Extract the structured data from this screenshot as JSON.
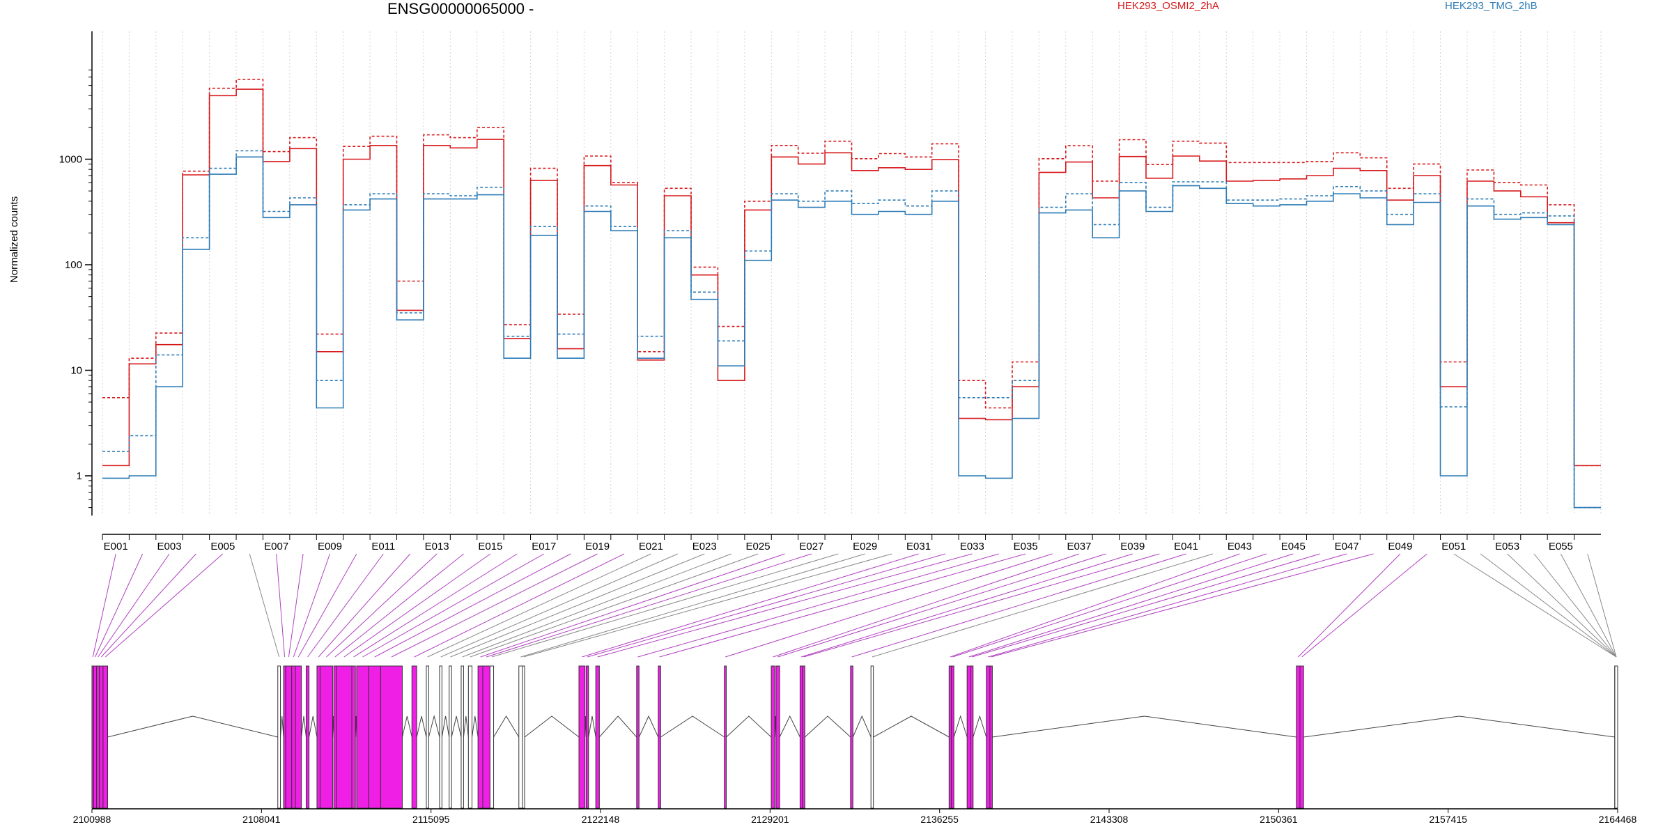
{
  "chart_data": {
    "type": "line",
    "title": "ENSG00000065000 -",
    "ylabel": "Normalized counts",
    "yscale": "log",
    "ylim": [
      0.5,
      7000
    ],
    "yticks": [
      1,
      10,
      100,
      1000
    ],
    "ytick_labels": [
      "1",
      "10",
      "100",
      "1000"
    ],
    "bins": [
      "E001",
      "E002",
      "E003",
      "E004",
      "E005",
      "E006",
      "E007",
      "E008",
      "E009",
      "E010",
      "E011",
      "E012",
      "E013",
      "E014",
      "E015",
      "E016",
      "E017",
      "E018",
      "E019",
      "E020",
      "E021",
      "E022",
      "E023",
      "E024",
      "E025",
      "E026",
      "E027",
      "E028",
      "E029",
      "E030",
      "E031",
      "E032",
      "E033",
      "E034",
      "E035",
      "E036",
      "E037",
      "E038",
      "E039",
      "E040",
      "E041",
      "E042",
      "E043",
      "E044",
      "E045",
      "E046",
      "E047",
      "E048",
      "E049",
      "E050",
      "E051",
      "E052",
      "E053",
      "E054",
      "E055",
      "E056"
    ],
    "x_tick_labels": [
      "E001",
      "E003",
      "E005",
      "E007",
      "E009",
      "E011",
      "E013",
      "E015",
      "E017",
      "E019",
      "E021",
      "E023",
      "E025",
      "E027",
      "E029",
      "E031",
      "E033",
      "E035",
      "E037",
      "E039",
      "E041",
      "E043",
      "E045",
      "E047",
      "E049",
      "E051",
      "E053",
      "E055"
    ],
    "series": [
      {
        "name": "HEK293_OSMI2_2hA",
        "color": "#d7191c",
        "style": "dashed",
        "values": [
          5.5,
          13,
          22.5,
          770,
          4700,
          5700,
          1180,
          1600,
          22,
          1320,
          1650,
          70,
          1700,
          1600,
          2000,
          27,
          820,
          34,
          1070,
          600,
          15,
          530,
          95,
          26,
          400,
          1350,
          1140,
          1480,
          1010,
          1130,
          1050,
          1400,
          8,
          4.4,
          12,
          1010,
          1340,
          620,
          1530,
          890,
          1480,
          1420,
          930,
          930,
          930,
          950,
          1150,
          1030,
          530,
          900,
          12,
          790,
          600,
          570,
          370,
          1.25
        ]
      },
      {
        "name": "HEK293_OSMI2_2hA",
        "color": "#d7191c",
        "style": "solid",
        "values": [
          1.25,
          11.5,
          17.5,
          710,
          4000,
          4600,
          950,
          1260,
          15,
          1000,
          1350,
          37,
          1350,
          1280,
          1540,
          20,
          630,
          16,
          870,
          570,
          12.5,
          450,
          80,
          8,
          330,
          1050,
          900,
          1150,
          780,
          830,
          800,
          990,
          3.5,
          3.4,
          7,
          750,
          940,
          430,
          1060,
          660,
          1070,
          960,
          620,
          630,
          650,
          700,
          820,
          780,
          410,
          700,
          7,
          620,
          500,
          440,
          250,
          1.25
        ]
      },
      {
        "name": "HEK293_TMG_2hB",
        "color": "#2c7bb6",
        "style": "dashed",
        "values": [
          1.7,
          2.4,
          14,
          180,
          820,
          1200,
          320,
          430,
          8,
          370,
          470,
          35,
          470,
          450,
          540,
          21,
          230,
          22,
          360,
          230,
          21,
          210,
          55,
          19,
          135,
          470,
          400,
          500,
          380,
          410,
          360,
          500,
          5.5,
          5.5,
          8,
          350,
          470,
          240,
          600,
          350,
          610,
          610,
          410,
          410,
          420,
          450,
          550,
          500,
          300,
          470,
          4.5,
          420,
          300,
          310,
          290,
          0.5
        ]
      },
      {
        "name": "HEK293_TMG_2hB",
        "color": "#2c7bb6",
        "style": "solid",
        "values": [
          0.95,
          1.0,
          7,
          140,
          720,
          1050,
          280,
          370,
          4.4,
          330,
          420,
          30,
          420,
          420,
          460,
          13,
          190,
          13,
          320,
          210,
          13,
          180,
          47,
          11,
          110,
          410,
          350,
          400,
          300,
          320,
          300,
          400,
          1.0,
          0.95,
          3.5,
          310,
          330,
          180,
          500,
          320,
          560,
          530,
          380,
          360,
          370,
          400,
          470,
          430,
          240,
          390,
          1.0,
          360,
          270,
          280,
          240,
          0.5
        ]
      }
    ],
    "genomic_ticks": [
      "2100988",
      "2108041",
      "2115095",
      "2122148",
      "2129201",
      "2136255",
      "2143308",
      "2150361",
      "2157415",
      "2164468"
    ],
    "exon_bins": [
      {
        "id": "E001",
        "start": 2100988,
        "end": 2101060,
        "highlight": true
      },
      {
        "id": "E002",
        "start": 2101060,
        "end": 2101180,
        "highlight": true
      },
      {
        "id": "E003",
        "start": 2101180,
        "end": 2101300,
        "highlight": true
      },
      {
        "id": "E004",
        "start": 2101300,
        "end": 2101450,
        "highlight": true
      },
      {
        "id": "E005",
        "start": 2101450,
        "end": 2101640,
        "highlight": true
      },
      {
        "id": "E006",
        "start": 2108720,
        "end": 2108830,
        "highlight": false
      },
      {
        "id": "E007",
        "start": 2108960,
        "end": 2109050,
        "highlight": true
      },
      {
        "id": "E008",
        "start": 2109050,
        "end": 2109300,
        "highlight": true
      },
      {
        "id": "E009",
        "start": 2109300,
        "end": 2109450,
        "highlight": true
      },
      {
        "id": "E010",
        "start": 2109450,
        "end": 2109700,
        "highlight": true
      },
      {
        "id": "E011",
        "start": 2109900,
        "end": 2110020,
        "highlight": true
      },
      {
        "id": "E012",
        "start": 2110350,
        "end": 2110480,
        "highlight": true
      },
      {
        "id": "E013",
        "start": 2110480,
        "end": 2111000,
        "highlight": true
      },
      {
        "id": "E014",
        "start": 2111050,
        "end": 2111150,
        "highlight": true
      },
      {
        "id": "E015",
        "start": 2111150,
        "end": 2111800,
        "highlight": true
      },
      {
        "id": "E016",
        "start": 2111800,
        "end": 2111950,
        "highlight": true
      },
      {
        "id": "E017",
        "start": 2112000,
        "end": 2112500,
        "highlight": true
      },
      {
        "id": "E018",
        "start": 2112500,
        "end": 2113000,
        "highlight": true
      },
      {
        "id": "E019",
        "start": 2113000,
        "end": 2113900,
        "highlight": true
      },
      {
        "id": "E020",
        "start": 2114300,
        "end": 2114500,
        "highlight": true
      },
      {
        "id": "E021",
        "start": 2114900,
        "end": 2115000,
        "highlight": false
      },
      {
        "id": "E022",
        "start": 2115450,
        "end": 2115550,
        "highlight": false
      },
      {
        "id": "E023",
        "start": 2115850,
        "end": 2115950,
        "highlight": false
      },
      {
        "id": "E024",
        "start": 2116350,
        "end": 2116450,
        "highlight": false
      },
      {
        "id": "E025",
        "start": 2116650,
        "end": 2116800,
        "highlight": false
      },
      {
        "id": "E026",
        "start": 2117050,
        "end": 2117250,
        "highlight": true
      },
      {
        "id": "E027",
        "start": 2117250,
        "end": 2117550,
        "highlight": true
      },
      {
        "id": "E028",
        "start": 2117550,
        "end": 2117700,
        "highlight": false
      },
      {
        "id": "E029",
        "start": 2118750,
        "end": 2118900,
        "highlight": false
      },
      {
        "id": "E030",
        "start": 2118900,
        "end": 2118990,
        "highlight": false
      },
      {
        "id": "E031",
        "start": 2121250,
        "end": 2121500,
        "highlight": true
      },
      {
        "id": "E032",
        "start": 2121550,
        "end": 2121650,
        "highlight": true
      },
      {
        "id": "E033",
        "start": 2121950,
        "end": 2122100,
        "highlight": true
      },
      {
        "id": "E034",
        "start": 2123650,
        "end": 2123750,
        "highlight": true
      },
      {
        "id": "E035",
        "start": 2124550,
        "end": 2124650,
        "highlight": true
      },
      {
        "id": "E036",
        "start": 2127300,
        "end": 2127380,
        "highlight": true
      },
      {
        "id": "E037",
        "start": 2129250,
        "end": 2129400,
        "highlight": true
      },
      {
        "id": "E038",
        "start": 2129450,
        "end": 2129600,
        "highlight": true
      },
      {
        "id": "E039",
        "start": 2130450,
        "end": 2130550,
        "highlight": true
      },
      {
        "id": "E040",
        "start": 2130550,
        "end": 2130650,
        "highlight": true
      },
      {
        "id": "E041",
        "start": 2132550,
        "end": 2132650,
        "highlight": true
      },
      {
        "id": "E042",
        "start": 2133400,
        "end": 2133500,
        "highlight": false
      },
      {
        "id": "E043",
        "start": 2136650,
        "end": 2136750,
        "highlight": true
      },
      {
        "id": "E044",
        "start": 2136750,
        "end": 2136850,
        "highlight": true
      },
      {
        "id": "E045",
        "start": 2137400,
        "end": 2137550,
        "highlight": true
      },
      {
        "id": "E046",
        "start": 2137550,
        "end": 2137650,
        "highlight": true
      },
      {
        "id": "E047",
        "start": 2138200,
        "end": 2138350,
        "highlight": true
      },
      {
        "id": "E048",
        "start": 2138350,
        "end": 2138450,
        "highlight": true
      },
      {
        "id": "E049",
        "start": 2151100,
        "end": 2151250,
        "highlight": true
      },
      {
        "id": "E050",
        "start": 2151250,
        "end": 2151400,
        "highlight": true
      },
      {
        "id": "E051",
        "start": 2164350,
        "end": 2164468,
        "highlight": false
      },
      {
        "id": "E052",
        "start": 2164350,
        "end": 2164468,
        "highlight": false
      },
      {
        "id": "E053",
        "start": 2164350,
        "end": 2164468,
        "highlight": false
      },
      {
        "id": "E054",
        "start": 2164350,
        "end": 2164468,
        "highlight": false
      },
      {
        "id": "E055",
        "start": 2164350,
        "end": 2164468,
        "highlight": false
      },
      {
        "id": "E056",
        "start": 2164350,
        "end": 2164468,
        "highlight": false
      }
    ],
    "colors": {
      "highlight": "#f01fe6",
      "normal_exon": "#ffffff",
      "line_highlight": "#b040c0",
      "line_normal": "#888888"
    },
    "grid": true
  }
}
